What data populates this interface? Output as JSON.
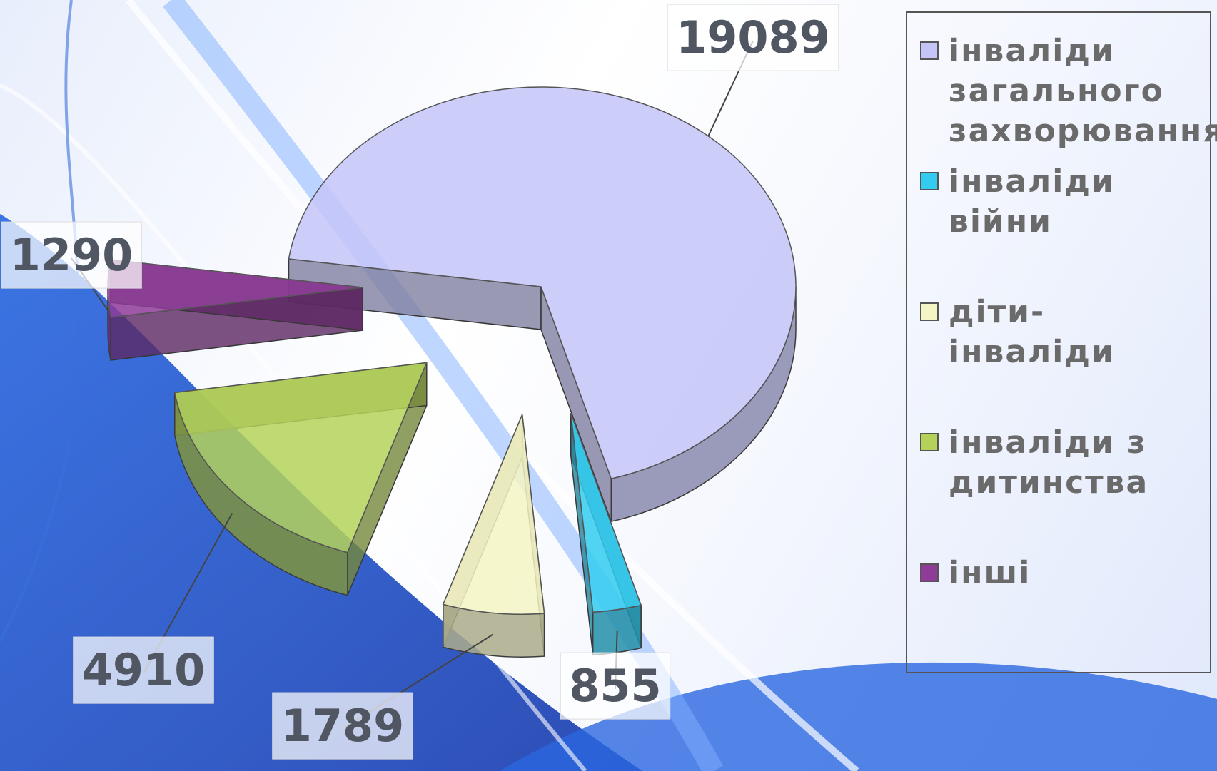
{
  "chart_data": {
    "type": "pie",
    "categories": [
      "інваліди загального захворювання",
      "інваліди війни",
      "діти-інваліди",
      "інваліди з дитинства",
      "інші"
    ],
    "values": [
      19089,
      855,
      1789,
      4910,
      1290
    ],
    "colors": [
      "#c4c4f8",
      "#33ccf0",
      "#f4f4c4",
      "#b4d25a",
      "#8e3c98"
    ]
  }
}
